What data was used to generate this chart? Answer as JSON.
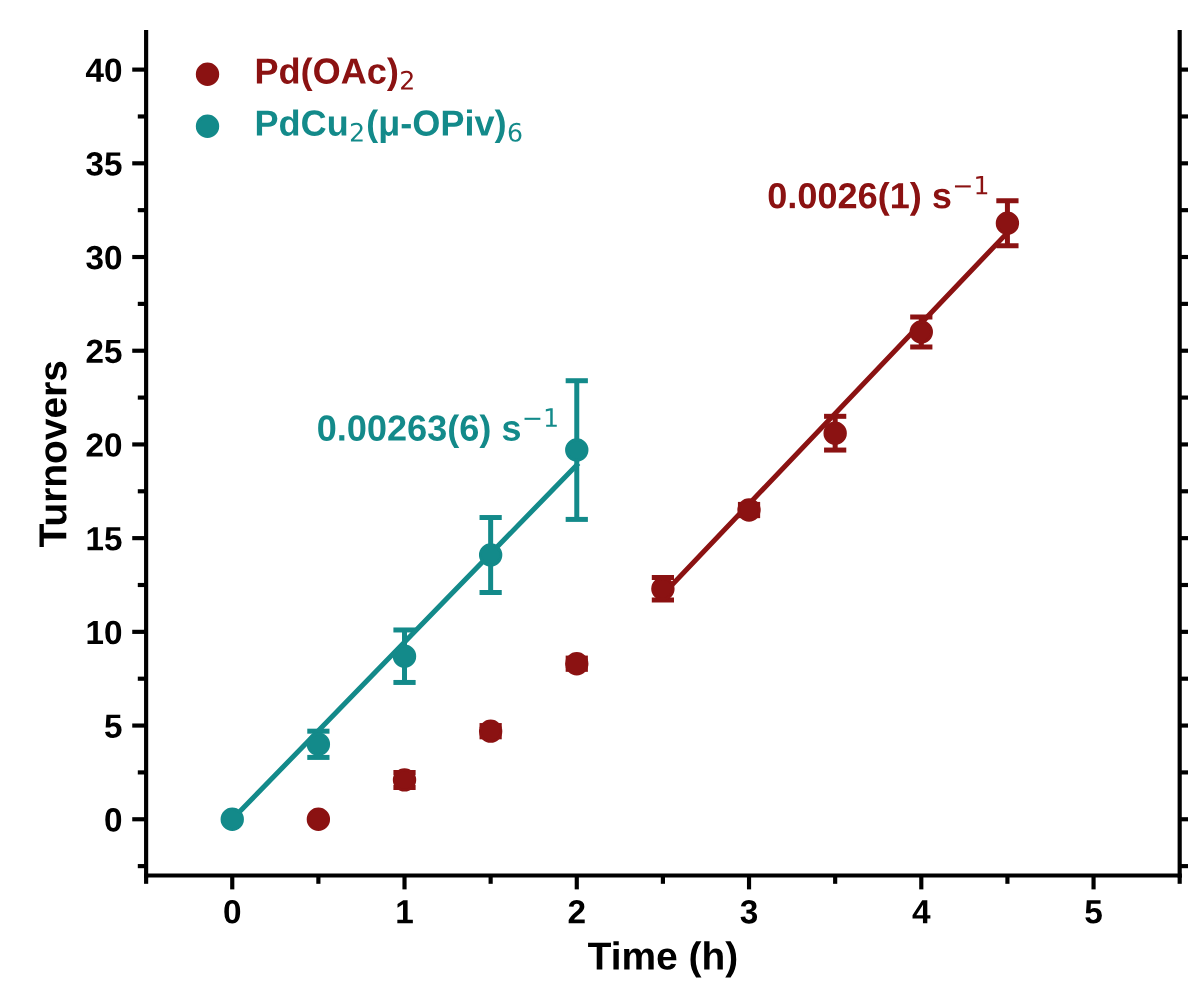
{
  "chart_data": {
    "type": "scatter",
    "xlabel": "Time (h)",
    "ylabel": "Turnovers",
    "xlim": [
      -0.5,
      5.5
    ],
    "xticks": [
      0,
      1,
      2,
      3,
      4,
      5
    ],
    "ylim": [
      -3,
      42
    ],
    "yticks": [
      0,
      5,
      10,
      15,
      20,
      25,
      30,
      35,
      40
    ],
    "legend": "top left",
    "grid": false,
    "series": [
      {
        "name": "Pd(OAc)$_{2}$",
        "color": "#8b1212",
        "marker": "circle",
        "x": [
          0.5,
          1,
          1.5,
          2,
          2.5,
          3,
          3.5,
          4,
          4.5
        ],
        "values": [
          0,
          2.1,
          4.7,
          8.3,
          12.3,
          16.5,
          20.6,
          26.0,
          31.8
        ],
        "errors": [
          null,
          0.4,
          0.3,
          0.3,
          0.6,
          0.3,
          0.9,
          0.8,
          1.2
        ]
      },
      {
        "name": "PdCu$_{2}$(μ-OPiv)$_{6}$",
        "color": "#138a8a",
        "marker": "circle",
        "x": [
          0,
          0.5,
          1,
          1.5,
          2
        ],
        "values": [
          0,
          4.0,
          8.7,
          14.1,
          19.7
        ],
        "errors": [
          null,
          0.7,
          1.4,
          2.0,
          3.7
        ]
      },
      {
        "type": "line",
        "color": "#138a8a",
        "marker": "none",
        "x": [
          0,
          2
        ],
        "values": [
          0,
          18.9
        ]
      },
      {
        "type": "line",
        "color": "#8b1212",
        "marker": "none",
        "x": [
          2.5,
          4.5
        ],
        "values": [
          12.0,
          31.3
        ]
      }
    ],
    "annotations": [
      {
        "text": "0.00263(6) s$^{−1}$",
        "x": 2,
        "y": 18.9
      },
      {
        "text": "0.0026(1) s$^{−1}$",
        "x": 4.5,
        "y": 31.3
      }
    ]
  }
}
